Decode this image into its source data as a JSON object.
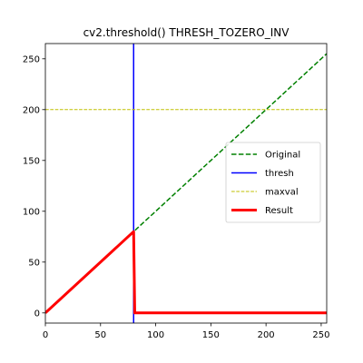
{
  "chart_data": {
    "type": "line",
    "title": "cv2.threshold() THRESH_TOZERO_INV",
    "xlabel": "",
    "ylabel": "",
    "xlim": [
      0,
      255
    ],
    "ylim": [
      -10,
      265
    ],
    "x_ticks": [
      0,
      50,
      100,
      150,
      200,
      250
    ],
    "y_ticks": [
      0,
      50,
      100,
      150,
      200,
      250
    ],
    "grid": false,
    "legend_position": "center-right",
    "series": [
      {
        "name": "Original",
        "color": "#008000",
        "style": "dashed",
        "x": [
          0,
          255
        ],
        "y": [
          0,
          255
        ]
      },
      {
        "name": "thresh",
        "color": "#0000ff",
        "style": "solid",
        "orientation": "vertical",
        "x": [
          80,
          80
        ],
        "y": [
          -10,
          265
        ]
      },
      {
        "name": "maxval",
        "color": "#bfbf00",
        "style": "dashed",
        "orientation": "horizontal",
        "x": [
          0,
          255
        ],
        "y": [
          200,
          200
        ]
      },
      {
        "name": "Result",
        "color": "#ff0000",
        "style": "solid",
        "x": [
          0,
          80,
          81,
          255
        ],
        "y": [
          0,
          80,
          0,
          0
        ]
      }
    ]
  }
}
